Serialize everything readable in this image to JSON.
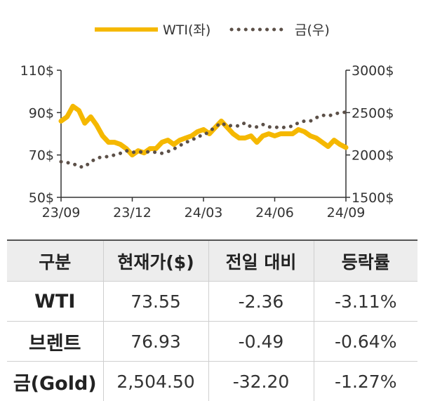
{
  "legend": {
    "wti": "WTI(좌)",
    "gold": "금(우)"
  },
  "colors": {
    "wti": "#f5b800",
    "gold": "#5c5048",
    "axis": "#333333",
    "header_bg": "#ededed"
  },
  "chart_data": {
    "type": "line",
    "x_ticks": [
      "23/09",
      "23/12",
      "24/03",
      "24/06",
      "24/09"
    ],
    "y_left": {
      "ticks": [
        "110$",
        "90$",
        "70$",
        "50$"
      ],
      "ylim": [
        50,
        110
      ]
    },
    "y_right": {
      "ticks": [
        "3000$",
        "2500$",
        "2000$",
        "1500$"
      ],
      "ylim": [
        1500,
        3000
      ]
    },
    "grid": false,
    "legend_position": "top",
    "series": [
      {
        "name": "WTI(좌)",
        "axis": "left",
        "style": "solid",
        "values": [
          86,
          88,
          93,
          91,
          85,
          88,
          84,
          79,
          76,
          76,
          75,
          73,
          70,
          72,
          71,
          73,
          73,
          76,
          77,
          75,
          77,
          78,
          79,
          81,
          82,
          80,
          83,
          86,
          83,
          80,
          78,
          78,
          79,
          76,
          79,
          80,
          79,
          80,
          80,
          80,
          82,
          81,
          79,
          78,
          76,
          74,
          77,
          75,
          73.55
        ]
      },
      {
        "name": "금(우)",
        "axis": "right",
        "style": "dotted",
        "values": [
          1920,
          1910,
          1900,
          1860,
          1860,
          1920,
          1960,
          1980,
          1980,
          2000,
          2020,
          2050,
          2030,
          2040,
          2030,
          2040,
          2030,
          2020,
          2040,
          2070,
          2110,
          2150,
          2170,
          2220,
          2230,
          2280,
          2330,
          2380,
          2340,
          2350,
          2340,
          2380,
          2330,
          2330,
          2360,
          2330,
          2330,
          2320,
          2330,
          2340,
          2380,
          2400,
          2400,
          2440,
          2470,
          2460,
          2480,
          2500,
          2504.5
        ]
      }
    ]
  },
  "table": {
    "headers": [
      "구분",
      "현재가($)",
      "전일 대비",
      "등락률"
    ],
    "rows": [
      {
        "name": "WTI",
        "price": "73.55",
        "change": "-2.36",
        "rate": "-3.11%"
      },
      {
        "name": "브렌트",
        "price": "76.93",
        "change": "-0.49",
        "rate": "-0.64%"
      },
      {
        "name": "금(Gold)",
        "price": "2,504.50",
        "change": "-32.20",
        "rate": "-1.27%"
      }
    ]
  }
}
